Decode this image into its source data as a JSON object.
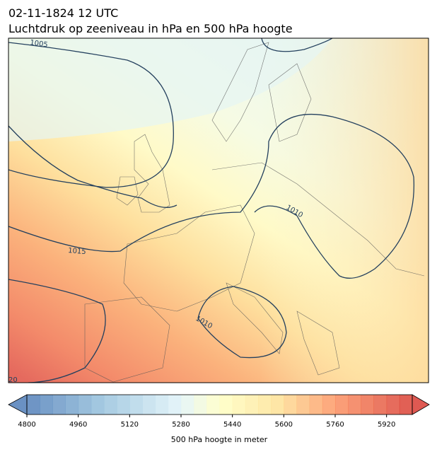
{
  "header": {
    "date": "02-11-1824 12 UTC",
    "title": "Luchtdruk op zeeniveau in hPa en 500 hPa hoogte"
  },
  "map": {
    "contour_labels": [
      "1005",
      "1015",
      "1010",
      "1010",
      "20"
    ]
  },
  "colorbar": {
    "label": "500 hPa hoogte in meter",
    "range": [
      4800,
      6000
    ],
    "step": 40,
    "ticks": [
      4800,
      4960,
      5120,
      5280,
      5440,
      5600,
      5760,
      5920
    ]
  }
}
